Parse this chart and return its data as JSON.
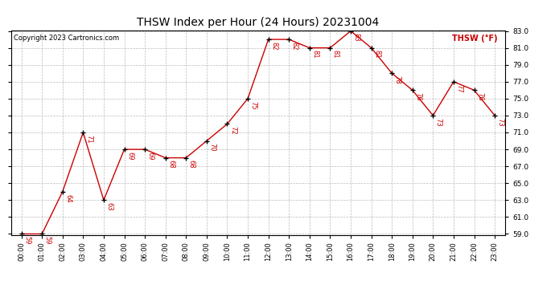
{
  "title": "THSW Index per Hour (24 Hours) 20231004",
  "copyright": "Copyright 2023 Cartronics.com",
  "legend_label": "THSW (°F)",
  "hours": [
    0,
    1,
    2,
    3,
    4,
    5,
    6,
    7,
    8,
    9,
    10,
    11,
    12,
    13,
    14,
    15,
    16,
    17,
    18,
    19,
    20,
    21,
    22,
    23
  ],
  "values": [
    59,
    59,
    64,
    71,
    63,
    69,
    69,
    68,
    68,
    70,
    72,
    75,
    82,
    82,
    81,
    81,
    83,
    81,
    78,
    76,
    73,
    77,
    76,
    73
  ],
  "xticklabels": [
    "00:00",
    "01:00",
    "02:00",
    "03:00",
    "04:00",
    "05:00",
    "06:00",
    "07:00",
    "08:00",
    "09:00",
    "10:00",
    "11:00",
    "12:00",
    "13:00",
    "14:00",
    "15:00",
    "16:00",
    "17:00",
    "18:00",
    "19:00",
    "20:00",
    "21:00",
    "22:00",
    "23:00"
  ],
  "ylim_min": 59.0,
  "ylim_max": 83.0,
  "yticks": [
    59.0,
    61.0,
    63.0,
    65.0,
    67.0,
    69.0,
    71.0,
    73.0,
    75.0,
    77.0,
    79.0,
    81.0,
    83.0
  ],
  "line_color": "#cc0000",
  "marker_color": "#000000",
  "bg_color": "#ffffff",
  "grid_color": "#aaaaaa",
  "title_color": "#000000",
  "label_color": "#cc0000",
  "copyright_color": "#000000"
}
